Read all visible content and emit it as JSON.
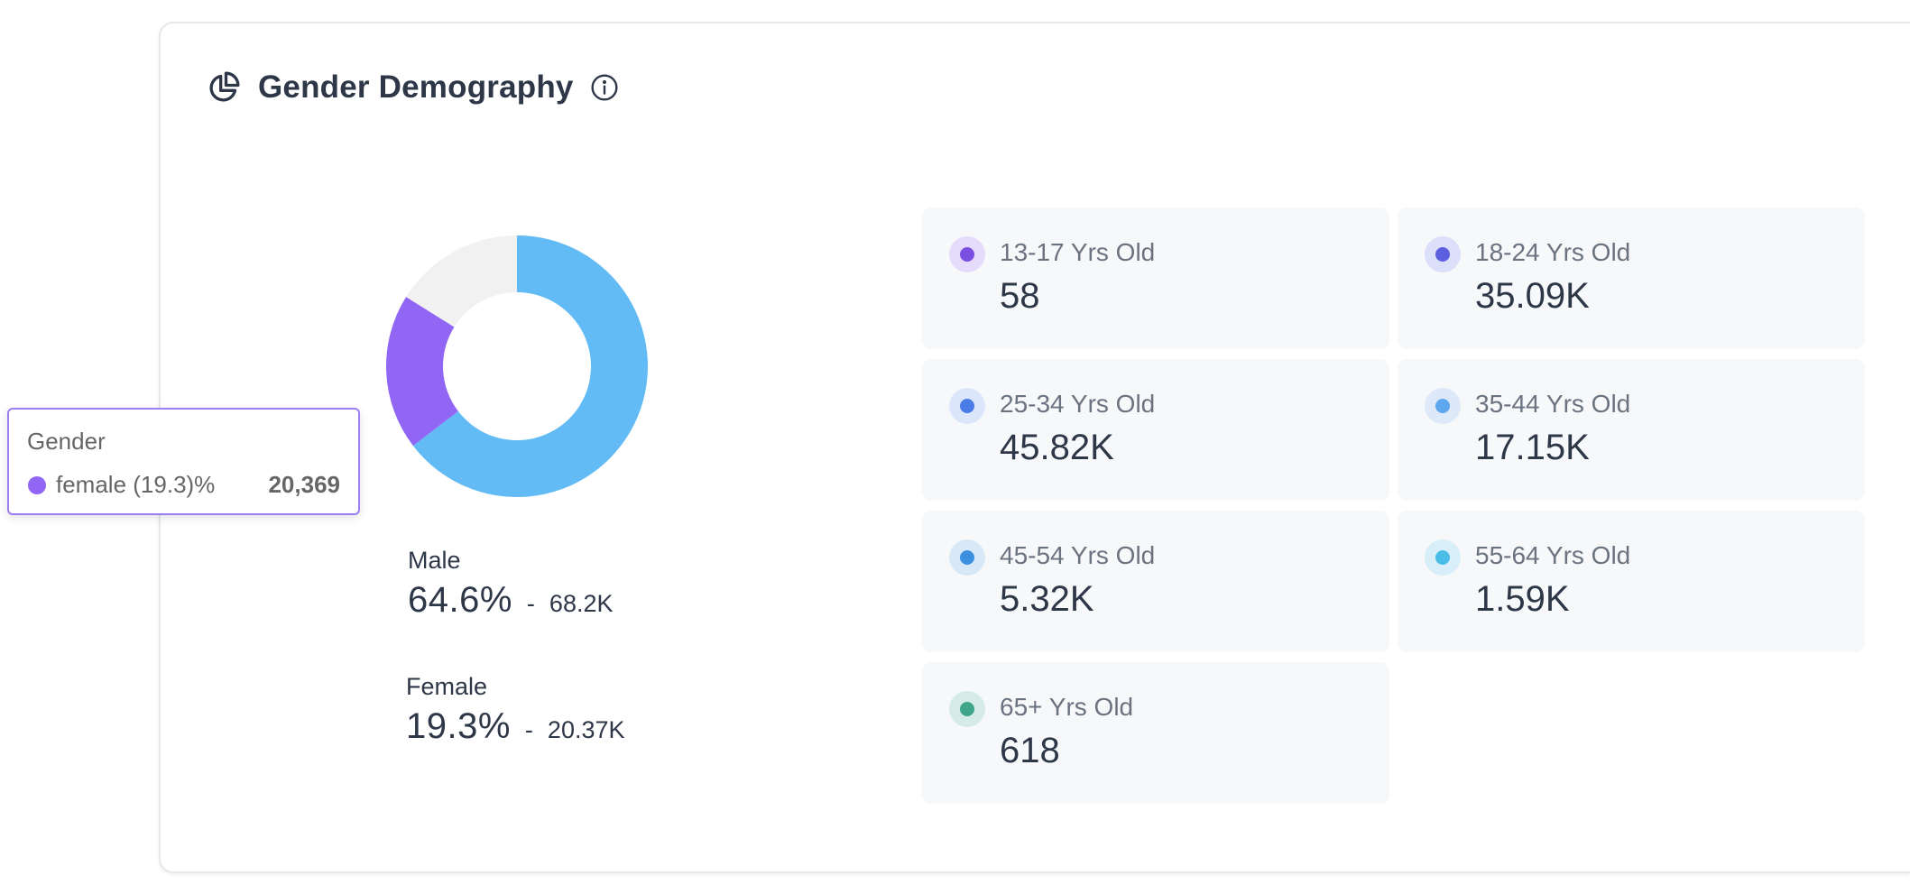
{
  "header": {
    "title": "Gender Demography",
    "icon": "pie-chart-icon",
    "info_icon": "info-icon"
  },
  "colors": {
    "male": "#63bbf5",
    "female": "#9166f5",
    "other": "#f2f1f1"
  },
  "chart_data": {
    "type": "pie",
    "variant": "donut",
    "slices": [
      {
        "label": "Male",
        "percent": 64.6,
        "value": 68200,
        "color": "#63bbf5"
      },
      {
        "label": "Female",
        "percent": 19.3,
        "value": 20369,
        "color": "#9166f5"
      },
      {
        "label": "",
        "percent": 16.1,
        "value": null,
        "color": "#f2f1f1"
      }
    ]
  },
  "gender_stats": [
    {
      "label": "Male",
      "percent": "64.6%",
      "separator": "-",
      "count": "68.2K"
    },
    {
      "label": "Female",
      "percent": "19.3%",
      "separator": "-",
      "count": "20.37K"
    }
  ],
  "age_groups": [
    {
      "label": "13-17 Yrs Old",
      "value": "58",
      "dot": "#7a4fe0",
      "ring": "#e4dcfa"
    },
    {
      "label": "18-24 Yrs Old",
      "value": "35.09K",
      "dot": "#5b5fe0",
      "ring": "#dcdffa"
    },
    {
      "label": "25-34 Yrs Old",
      "value": "45.82K",
      "dot": "#4b7be6",
      "ring": "#dce6fb"
    },
    {
      "label": "35-44 Yrs Old",
      "value": "17.15K",
      "dot": "#5ea6ee",
      "ring": "#dde9f8"
    },
    {
      "label": "45-54 Yrs Old",
      "value": "5.32K",
      "dot": "#3a8fdf",
      "ring": "#d8e8f7"
    },
    {
      "label": "55-64 Yrs Old",
      "value": "1.59K",
      "dot": "#49bde8",
      "ring": "#d8eef8"
    },
    {
      "label": "65+ Yrs Old",
      "value": "618",
      "dot": "#3fa68a",
      "ring": "#d4ece5"
    }
  ],
  "tooltip": {
    "title": "Gender",
    "label": "female (19.3)%",
    "value": "20,369",
    "dot_color": "#9166f5"
  }
}
